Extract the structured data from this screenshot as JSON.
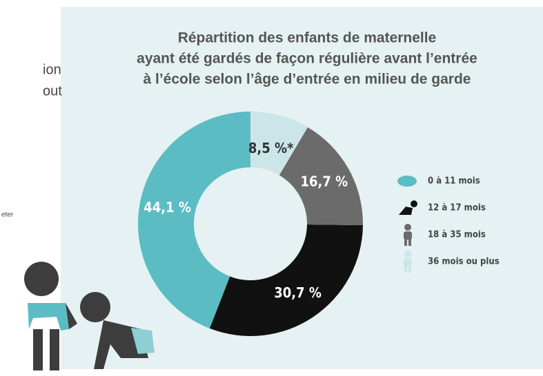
{
  "side_text": [
    "ion",
    "out",
    "eter"
  ],
  "chart_data": {
    "type": "pie",
    "donut": true,
    "title": [
      "Répartition des enfants de maternelle",
      "ayant été gardés de façon régulière avant l’entrée",
      "à l’école selon l’âge d’entrée en milieu de garde"
    ],
    "categories": [
      "0 à 11 mois",
      "12 à 17 mois",
      "18 à 35 mois",
      "36 mois ou plus"
    ],
    "values": [
      44.1,
      30.7,
      16.7,
      8.5
    ],
    "value_labels": [
      "44,1 %",
      "30,7 %",
      "16,7 %",
      "8,5 %*"
    ],
    "colors": [
      "#5bbcc4",
      "#111111",
      "#6b6b6b",
      "#cce5e8"
    ],
    "label_colors": [
      "#ffffff",
      "#ffffff",
      "#ffffff",
      "#333333"
    ],
    "legend": "right"
  }
}
